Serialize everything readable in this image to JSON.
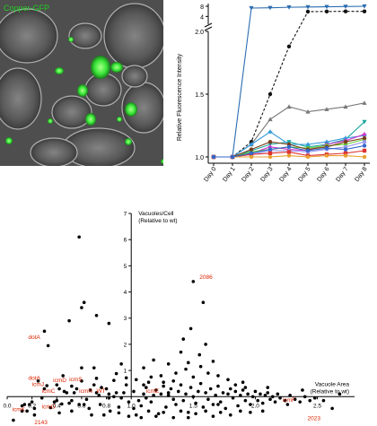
{
  "panel_a": {
    "label": "Copper-GFP",
    "colors": {
      "background": "#4e4e4e",
      "fluorescence": "#39e639",
      "label": "#22cc22"
    }
  },
  "chart_data": [
    {
      "type": "line",
      "ylabel": "Relative Fluorescence Intensity",
      "categories": [
        "Day 0",
        "Day 1",
        "Day 2",
        "Day 3",
        "Day 4",
        "Day 5",
        "Day 6",
        "Day 7",
        "Day 8"
      ],
      "ylim": [
        0.95,
        2.0
      ],
      "ylim_upper": [
        2,
        8
      ],
      "yticks": [
        1.0,
        1.5,
        2.0
      ],
      "yticks_upper": [
        4,
        8
      ],
      "axis_break": true,
      "series": [
        {
          "color": "#2b6cb0",
          "marker": "triangle-down",
          "line": "solid",
          "values": [
            1.0,
            1.0,
            7.3,
            7.4,
            7.6,
            7.7,
            7.8,
            7.9,
            8.0
          ]
        },
        {
          "color": "#111111",
          "marker": "circle",
          "line": "dashed",
          "values": [
            1.0,
            1.0,
            1.12,
            1.5,
            1.88,
            5.9,
            5.95,
            6.0,
            6.0
          ]
        },
        {
          "color": "#777777",
          "marker": "triangle",
          "line": "solid",
          "values": [
            1.0,
            1.0,
            1.1,
            1.3,
            1.4,
            1.36,
            1.38,
            1.4,
            1.43
          ]
        },
        {
          "color": "#1aa8a0",
          "marker": "triangle-down",
          "line": "solid",
          "values": [
            1.0,
            1.0,
            1.05,
            1.1,
            1.12,
            1.08,
            1.1,
            1.14,
            1.28
          ]
        },
        {
          "color": "#3399dd",
          "marker": "star",
          "line": "solid",
          "values": [
            1.0,
            1.0,
            1.1,
            1.2,
            1.1,
            1.1,
            1.12,
            1.15,
            1.17
          ]
        },
        {
          "color": "#cc33cc",
          "marker": "star",
          "line": "solid",
          "values": [
            1.0,
            1.0,
            1.03,
            1.08,
            1.06,
            1.05,
            1.1,
            1.13,
            1.18
          ]
        },
        {
          "color": "#66cc33",
          "marker": "circle",
          "line": "solid",
          "values": [
            1.0,
            1.0,
            1.04,
            1.06,
            1.08,
            1.07,
            1.09,
            1.1,
            1.14
          ]
        },
        {
          "color": "#7a3c1a",
          "marker": "circle",
          "line": "solid",
          "values": [
            1.0,
            1.0,
            1.06,
            1.12,
            1.1,
            1.06,
            1.08,
            1.12,
            1.15
          ]
        },
        {
          "color": "#9999ee",
          "marker": "circle",
          "line": "solid",
          "values": [
            1.0,
            1.0,
            1.02,
            1.05,
            1.05,
            1.04,
            1.06,
            1.08,
            1.12
          ]
        },
        {
          "color": "#dd3333",
          "marker": "square",
          "line": "solid",
          "values": [
            1.0,
            1.0,
            1.02,
            1.03,
            1.04,
            1.01,
            1.02,
            1.03,
            1.05
          ]
        },
        {
          "color": "#e8a030",
          "marker": "circle",
          "line": "solid",
          "values": [
            1.0,
            1.0,
            1.0,
            1.0,
            1.01,
            1.0,
            1.01,
            1.01,
            1.0
          ]
        },
        {
          "color": "#3366cc",
          "marker": "circle",
          "line": "solid",
          "values": [
            1.0,
            1.0,
            1.03,
            1.06,
            1.08,
            1.05,
            1.07,
            1.06,
            1.09
          ]
        }
      ]
    },
    {
      "type": "scatter",
      "xlabel": "Vacuole Area",
      "xlabel_sub": "(Relative to wt)",
      "ylabel": "Vacuoles/Cell",
      "ylabel_sub": "(Relative to wt)",
      "xlim": [
        0.0,
        2.8
      ],
      "ylim": [
        -0.95,
        7.0
      ],
      "xticks": [
        "0.0",
        "0.2",
        "0.4",
        "0.6",
        "0.8",
        "1.0",
        "1.5",
        "2.0",
        "2.5"
      ],
      "yticks": [
        "1",
        "2",
        "3",
        "4",
        "5",
        "6",
        "7"
      ],
      "y_axis_at_x": 1.0,
      "point_color": "#000000",
      "label_color": "#dd2200",
      "points": [
        [
          0.05,
          -0.9
        ],
        [
          0.12,
          -0.35
        ],
        [
          0.12,
          -0.55
        ],
        [
          0.14,
          -0.3
        ],
        [
          0.16,
          -0.55
        ],
        [
          0.2,
          -0.2
        ],
        [
          0.22,
          -0.45
        ],
        [
          0.22,
          -0.7
        ],
        [
          0.28,
          -0.05
        ],
        [
          0.3,
          0.3
        ],
        [
          0.32,
          0.42
        ],
        [
          0.33,
          1.95
        ],
        [
          0.35,
          -0.42
        ],
        [
          0.38,
          -0.2
        ],
        [
          0.42,
          0.3
        ],
        [
          0.44,
          -0.28
        ],
        [
          0.46,
          0.2
        ],
        [
          0.48,
          0.15
        ],
        [
          0.5,
          -0.25
        ],
        [
          0.52,
          0.4
        ],
        [
          0.52,
          -0.15
        ],
        [
          0.54,
          0.15
        ],
        [
          0.56,
          0.3
        ],
        [
          0.58,
          -0.3
        ],
        [
          0.6,
          0.6
        ],
        [
          0.6,
          1.1
        ],
        [
          0.62,
          -0.3
        ],
        [
          0.64,
          -0.1
        ],
        [
          0.66,
          -0.45
        ],
        [
          0.67,
          0.25
        ],
        [
          0.7,
          0.45
        ],
        [
          0.72,
          0.15
        ],
        [
          0.74,
          0.05
        ],
        [
          0.75,
          -0.3
        ],
        [
          0.76,
          0.35
        ],
        [
          0.8,
          0.3
        ],
        [
          0.82,
          -0.05
        ],
        [
          0.83,
          -0.55
        ],
        [
          0.86,
          0.0
        ],
        [
          0.88,
          0.15
        ],
        [
          0.9,
          -0.4
        ],
        [
          0.92,
          -0.05
        ],
        [
          0.94,
          0.15
        ],
        [
          0.96,
          0.45
        ],
        [
          0.98,
          -0.2
        ],
        [
          0.5,
          2.9
        ],
        [
          0.6,
          3.4
        ],
        [
          0.72,
          3.1
        ],
        [
          0.82,
          2.8
        ],
        [
          0.3,
          2.5
        ],
        [
          0.25,
          0.6
        ],
        [
          0.4,
          0.45
        ],
        [
          0.45,
          0.8
        ],
        [
          0.68,
          -0.7
        ],
        [
          0.78,
          -0.7
        ],
        [
          0.9,
          -0.62
        ],
        [
          0.98,
          -0.75
        ],
        [
          0.58,
          6.1
        ],
        [
          0.92,
          1.25
        ],
        [
          0.62,
          3.6
        ],
        [
          0.18,
          -0.3
        ],
        [
          0.72,
          0.7
        ],
        [
          0.86,
          0.62
        ],
        [
          0.96,
          0.72
        ],
        [
          0.52,
          -0.55
        ],
        [
          0.4,
          -0.15
        ],
        [
          0.42,
          -0.62
        ],
        [
          0.7,
          1.1
        ],
        [
          0.88,
          0.88
        ],
        [
          0.82,
          0.1
        ],
        [
          1.02,
          0.2
        ],
        [
          1.04,
          0.65
        ],
        [
          1.06,
          -0.15
        ],
        [
          1.08,
          -0.35
        ],
        [
          1.1,
          0.1
        ],
        [
          1.12,
          0.35
        ],
        [
          1.14,
          0.55
        ],
        [
          1.16,
          -0.2
        ],
        [
          1.18,
          0.05
        ],
        [
          1.2,
          0.25
        ],
        [
          1.22,
          -0.65
        ],
        [
          1.24,
          0.1
        ],
        [
          1.26,
          0.4
        ],
        [
          1.28,
          -0.4
        ],
        [
          1.3,
          0.05
        ],
        [
          1.32,
          0.3
        ],
        [
          1.34,
          -0.1
        ],
        [
          1.36,
          -0.3
        ],
        [
          1.38,
          0.2
        ],
        [
          1.4,
          0.45
        ],
        [
          1.42,
          -0.15
        ],
        [
          1.44,
          0.1
        ],
        [
          1.46,
          -0.6
        ],
        [
          1.48,
          0.35
        ],
        [
          1.5,
          0.0
        ],
        [
          1.52,
          -0.25
        ],
        [
          1.54,
          0.2
        ],
        [
          1.56,
          0.5
        ],
        [
          1.58,
          -0.4
        ],
        [
          1.6,
          0.15
        ],
        [
          1.62,
          -0.1
        ],
        [
          1.64,
          0.3
        ],
        [
          1.66,
          -0.3
        ],
        [
          1.68,
          0.05
        ],
        [
          1.7,
          0.4
        ],
        [
          1.72,
          -0.2
        ],
        [
          1.74,
          0.15
        ],
        [
          1.76,
          -0.45
        ],
        [
          1.78,
          0.1
        ],
        [
          1.8,
          0.3
        ],
        [
          1.82,
          -0.05
        ],
        [
          1.84,
          0.2
        ],
        [
          1.86,
          -0.35
        ],
        [
          1.88,
          0.05
        ],
        [
          1.9,
          0.25
        ],
        [
          1.92,
          -0.15
        ],
        [
          1.94,
          0.1
        ],
        [
          1.96,
          -0.3
        ],
        [
          1.98,
          0.0
        ],
        [
          2.0,
          0.2
        ],
        [
          2.02,
          -0.15
        ],
        [
          2.04,
          0.1
        ],
        [
          2.06,
          -0.25
        ],
        [
          2.08,
          0.05
        ],
        [
          2.1,
          0.15
        ],
        [
          2.12,
          -0.1
        ],
        [
          2.14,
          0.0
        ],
        [
          2.16,
          -0.2
        ],
        [
          2.18,
          0.1
        ],
        [
          2.2,
          -0.05
        ],
        [
          2.24,
          -0.15
        ],
        [
          2.28,
          0.05
        ],
        [
          2.32,
          -0.1
        ],
        [
          2.36,
          -0.2
        ],
        [
          2.4,
          0.0
        ],
        [
          2.44,
          -0.15
        ],
        [
          2.48,
          -0.05
        ],
        [
          2.55,
          -0.15
        ],
        [
          2.62,
          -0.45
        ],
        [
          2.68,
          0.1
        ],
        [
          1.08,
          -0.8
        ],
        [
          1.14,
          -0.55
        ],
        [
          1.2,
          -0.75
        ],
        [
          1.26,
          -0.6
        ],
        [
          1.34,
          -0.8
        ],
        [
          1.4,
          -0.55
        ],
        [
          1.46,
          -0.8
        ],
        [
          1.52,
          -0.65
        ],
        [
          1.6,
          -0.55
        ],
        [
          1.66,
          -0.75
        ],
        [
          1.72,
          -0.6
        ],
        [
          1.8,
          -0.7
        ],
        [
          1.88,
          -0.55
        ],
        [
          1.96,
          -0.6
        ],
        [
          2.06,
          -0.55
        ],
        [
          1.1,
          1.1
        ],
        [
          1.18,
          1.4
        ],
        [
          1.24,
          0.8
        ],
        [
          1.3,
          1.25
        ],
        [
          1.36,
          0.9
        ],
        [
          1.44,
          1.05
        ],
        [
          1.5,
          0.75
        ],
        [
          1.56,
          1.15
        ],
        [
          1.62,
          0.9
        ],
        [
          1.7,
          0.8
        ],
        [
          1.78,
          0.65
        ],
        [
          1.9,
          0.55
        ],
        [
          1.5,
          4.4
        ],
        [
          1.58,
          3.6
        ],
        [
          1.55,
          1.6
        ],
        [
          1.42,
          2.2
        ],
        [
          1.48,
          2.6
        ],
        [
          1.46,
          1.3
        ],
        [
          1.34,
          0.6
        ],
        [
          1.26,
          0.55
        ],
        [
          1.16,
          0.75
        ],
        [
          1.1,
          0.45
        ],
        [
          1.02,
          -0.45
        ],
        [
          1.04,
          -0.7
        ],
        [
          1.12,
          -0.05
        ],
        [
          1.6,
          2.0
        ],
        [
          1.66,
          1.35
        ],
        [
          1.4,
          1.7
        ],
        [
          1.3,
          0.15
        ],
        [
          1.7,
          -0.3
        ],
        [
          1.84,
          0.45
        ],
        [
          1.92,
          0.35
        ],
        [
          2.1,
          0.35
        ],
        [
          2.26,
          -0.3
        ],
        [
          2.38,
          0.25
        ]
      ],
      "annotations": [
        {
          "label": "2086",
          "x": 1.55,
          "y": 4.5
        },
        {
          "label": "dotA",
          "x": 0.17,
          "y": 2.2
        },
        {
          "label": "dotA",
          "x": 0.17,
          "y": 0.65
        },
        {
          "label": "icmJ",
          "x": 0.2,
          "y": 0.4
        },
        {
          "label": "icmC",
          "x": 0.28,
          "y": 0.15
        },
        {
          "label": "icmD",
          "x": 0.37,
          "y": 0.55
        },
        {
          "label": "icmS",
          "x": 0.5,
          "y": 0.6
        },
        {
          "label": "icmN",
          "x": 0.58,
          "y": 0.15
        },
        {
          "label": "WT",
          "x": 0.72,
          "y": 0.15
        },
        {
          "label": "icmE",
          "x": 1.12,
          "y": 0.15
        },
        {
          "label": "icmF",
          "x": 2.22,
          "y": -0.2
        },
        {
          "label": "icmK",
          "x": 0.04,
          "y": -0.55
        },
        {
          "label": "icmG",
          "x": 0.28,
          "y": -0.45
        },
        {
          "label": "2023",
          "x": 2.42,
          "y": -0.9
        },
        {
          "label": "2143",
          "x": 0.22,
          "y": -1.05
        }
      ]
    }
  ]
}
